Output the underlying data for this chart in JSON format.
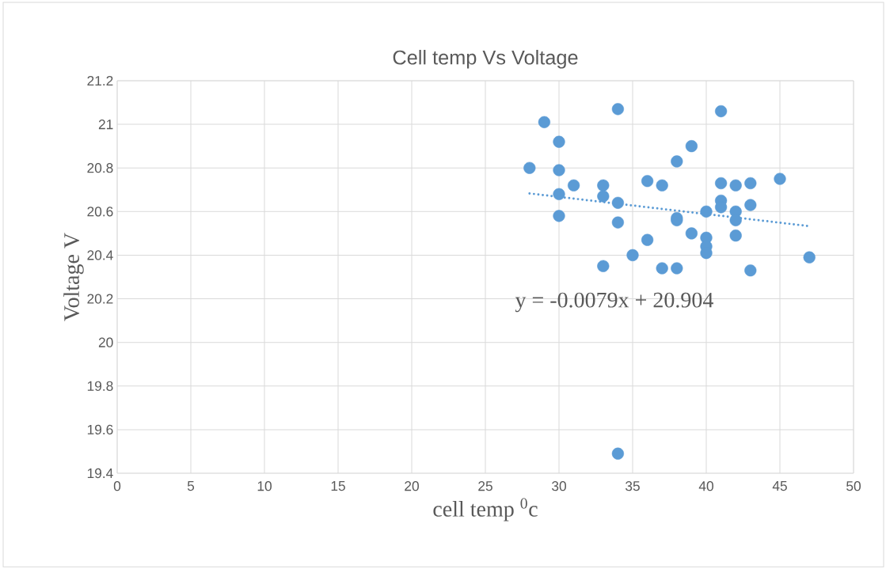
{
  "chart_data": {
    "type": "scatter",
    "title": "Cell temp  Vs Voltage",
    "xlabel": "cell temp $^{0}$c",
    "ylabel": "Voltage V",
    "xlim": [
      0,
      50
    ],
    "xticks": [
      0,
      5,
      10,
      15,
      20,
      25,
      30,
      35,
      40,
      45,
      50
    ],
    "ylim": [
      19.4,
      21.2
    ],
    "yticks": [
      19.4,
      19.6,
      19.8,
      20,
      20.2,
      20.4,
      20.6,
      20.8,
      21,
      21.2
    ],
    "grid": true,
    "marker": "circle",
    "annotations": [
      "y = -0.0079x + 20.904"
    ],
    "series": [
      {
        "color": "#5b9bd5",
        "x": [
          28,
          29,
          30,
          30,
          30,
          30,
          31,
          33,
          33,
          33,
          34,
          34,
          34,
          34,
          35,
          36,
          36,
          37,
          37,
          38,
          38,
          38,
          38,
          39,
          39,
          40,
          40,
          40,
          40,
          41,
          41,
          41,
          41,
          42,
          42,
          42,
          42,
          43,
          43,
          43,
          45,
          47
        ],
        "values": [
          20.8,
          21.01,
          20.92,
          20.79,
          20.68,
          20.58,
          20.72,
          20.72,
          20.67,
          20.35,
          21.07,
          20.64,
          20.55,
          19.49,
          20.4,
          20.74,
          20.47,
          20.72,
          20.34,
          20.83,
          20.57,
          20.56,
          20.34,
          20.9,
          20.5,
          20.6,
          20.48,
          20.44,
          20.41,
          21.06,
          20.73,
          20.65,
          20.62,
          20.72,
          20.6,
          20.56,
          20.49,
          20.73,
          20.63,
          20.33,
          20.75,
          20.39
        ]
      },
      {
        "type": "line",
        "color": "#5b9bd5",
        "marker": "none",
        "line_style": "dotted",
        "x": [
          28,
          47
        ],
        "values": [
          20.683,
          20.533
        ]
      }
    ]
  }
}
